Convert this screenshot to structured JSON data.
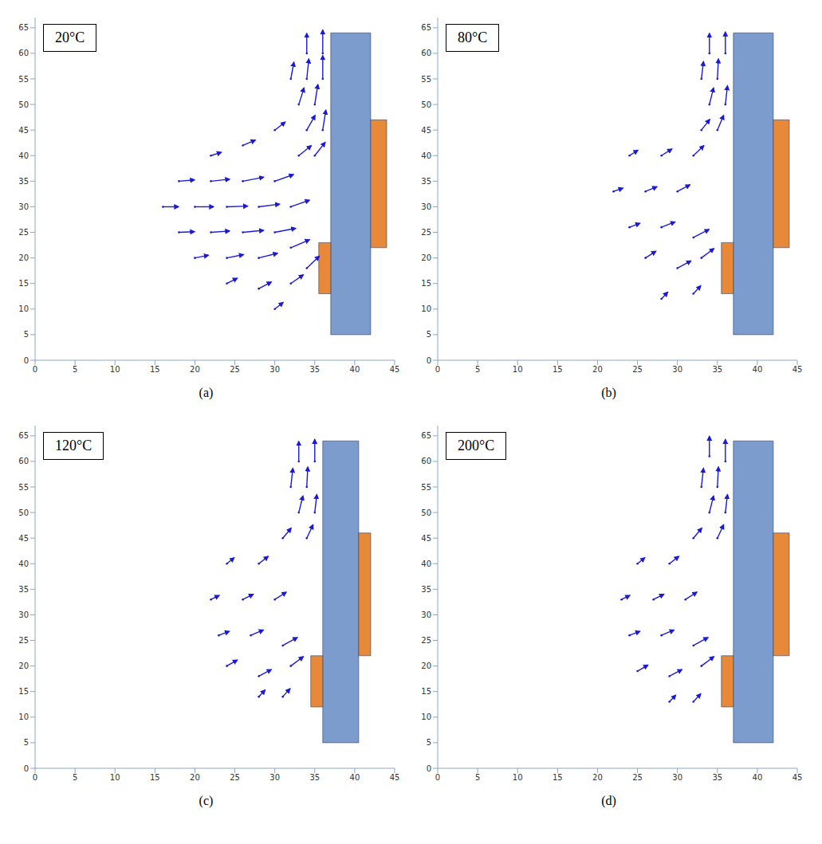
{
  "chart_data": [
    {
      "type": "quiver",
      "title": "20°C",
      "caption": "(a)",
      "xlim": [
        0,
        45
      ],
      "ylim": [
        0,
        67
      ],
      "xticks": [
        0,
        5,
        10,
        15,
        20,
        25,
        30,
        35,
        40,
        45
      ],
      "yticks": [
        0,
        5,
        10,
        15,
        20,
        25,
        30,
        35,
        40,
        45,
        50,
        55,
        60,
        65
      ],
      "grid": false,
      "color": "#1a1ad6",
      "regions": [
        {
          "xlim": [
            37,
            42
          ],
          "ylim": [
            5,
            64
          ],
          "color": "#7b9ccc"
        },
        {
          "xlim": [
            42,
            44
          ],
          "ylim": [
            22,
            47
          ],
          "color": "#e8893a"
        },
        {
          "xlim": [
            35.5,
            37
          ],
          "ylim": [
            13,
            23
          ],
          "color": "#e8893a"
        }
      ],
      "vectors": [
        [
          34,
          60,
          0,
          3
        ],
        [
          36,
          60,
          0,
          3.5
        ],
        [
          32,
          55,
          0.3,
          2.5
        ],
        [
          34,
          55,
          0.2,
          3
        ],
        [
          36,
          55,
          0,
          3.5
        ],
        [
          33,
          50,
          0.5,
          2.5
        ],
        [
          35,
          50,
          0.3,
          3
        ],
        [
          34,
          45,
          0.8,
          2.2
        ],
        [
          36,
          45,
          0.3,
          3
        ],
        [
          35,
          40,
          1,
          2
        ],
        [
          33,
          40,
          1.2,
          1.5
        ],
        [
          16,
          30,
          1.5,
          0
        ],
        [
          20,
          30,
          1.8,
          0
        ],
        [
          24,
          30,
          2,
          0.1
        ],
        [
          28,
          30,
          2,
          0.4
        ],
        [
          32,
          30,
          1.8,
          1
        ],
        [
          18,
          35,
          1.5,
          0.2
        ],
        [
          22,
          35,
          1.8,
          0.3
        ],
        [
          26,
          35,
          2,
          0.6
        ],
        [
          30,
          35,
          1.8,
          1
        ],
        [
          18,
          25,
          1.5,
          0.1
        ],
        [
          22,
          25,
          1.8,
          0.2
        ],
        [
          26,
          25,
          2,
          0.3
        ],
        [
          30,
          25,
          2,
          0.6
        ],
        [
          20,
          20,
          1.3,
          0.4
        ],
        [
          24,
          20,
          1.6,
          0.5
        ],
        [
          28,
          20,
          1.8,
          0.7
        ],
        [
          32,
          22,
          1.8,
          1.2
        ],
        [
          24,
          15,
          1,
          0.8
        ],
        [
          28,
          14,
          1.2,
          1
        ],
        [
          32,
          15,
          1.2,
          1.3
        ],
        [
          30,
          10,
          0.8,
          1
        ],
        [
          34,
          18,
          1.2,
          1.8
        ],
        [
          22,
          40,
          1,
          0.5
        ],
        [
          26,
          42,
          1.2,
          0.8
        ],
        [
          30,
          45,
          1,
          1.2
        ]
      ]
    },
    {
      "type": "quiver",
      "title": "80°C",
      "caption": "(b)",
      "xlim": [
        0,
        45
      ],
      "ylim": [
        0,
        67
      ],
      "xticks": [
        0,
        5,
        10,
        15,
        20,
        25,
        30,
        35,
        40,
        45
      ],
      "yticks": [
        0,
        5,
        10,
        15,
        20,
        25,
        30,
        35,
        40,
        45,
        50,
        55,
        60,
        65
      ],
      "grid": false,
      "color": "#1a1ad6",
      "regions": [
        {
          "xlim": [
            37,
            42
          ],
          "ylim": [
            5,
            64
          ],
          "color": "#7b9ccc"
        },
        {
          "xlim": [
            42,
            44
          ],
          "ylim": [
            22,
            47
          ],
          "color": "#e8893a"
        },
        {
          "xlim": [
            35.5,
            37
          ],
          "ylim": [
            13,
            23
          ],
          "color": "#e8893a"
        }
      ],
      "vectors": [
        [
          34,
          60,
          0,
          3
        ],
        [
          36,
          60,
          0,
          3.2
        ],
        [
          33,
          55,
          0.2,
          2.6
        ],
        [
          35,
          55,
          0.1,
          3
        ],
        [
          34,
          50,
          0.4,
          2.5
        ],
        [
          36,
          50,
          0.2,
          2.8
        ],
        [
          35,
          45,
          0.6,
          2.2
        ],
        [
          33,
          45,
          0.8,
          1.6
        ],
        [
          24,
          40,
          0.8,
          0.8
        ],
        [
          28,
          40,
          1,
          1
        ],
        [
          32,
          40,
          1,
          1.5
        ],
        [
          22,
          33,
          0.9,
          0.5
        ],
        [
          26,
          33,
          1.1,
          0.7
        ],
        [
          30,
          33,
          1.2,
          1
        ],
        [
          24,
          26,
          1,
          0.6
        ],
        [
          28,
          26,
          1.3,
          0.8
        ],
        [
          32,
          24,
          1.5,
          1.2
        ],
        [
          26,
          20,
          1,
          1
        ],
        [
          30,
          18,
          1.3,
          1.1
        ],
        [
          33,
          20,
          1.2,
          1.4
        ],
        [
          28,
          12,
          0.6,
          1
        ],
        [
          32,
          13,
          0.7,
          1.2
        ]
      ]
    },
    {
      "type": "quiver",
      "title": "120°C",
      "caption": "(c)",
      "xlim": [
        0,
        45
      ],
      "ylim": [
        0,
        67
      ],
      "xticks": [
        0,
        5,
        10,
        15,
        20,
        25,
        30,
        35,
        40,
        45
      ],
      "yticks": [
        0,
        5,
        10,
        15,
        20,
        25,
        30,
        35,
        40,
        45,
        50,
        55,
        60,
        65
      ],
      "grid": false,
      "color": "#1a1ad6",
      "regions": [
        {
          "xlim": [
            36,
            40.5
          ],
          "ylim": [
            5,
            64
          ],
          "color": "#7b9ccc"
        },
        {
          "xlim": [
            40.5,
            42
          ],
          "ylim": [
            22,
            46
          ],
          "color": "#e8893a"
        },
        {
          "xlim": [
            34.5,
            36
          ],
          "ylim": [
            12,
            22
          ],
          "color": "#e8893a"
        }
      ],
      "vectors": [
        [
          33,
          60,
          0,
          3
        ],
        [
          35,
          60,
          0,
          3.3
        ],
        [
          32,
          55,
          0.2,
          2.8
        ],
        [
          34,
          55,
          0.1,
          3
        ],
        [
          33,
          50,
          0.4,
          2.5
        ],
        [
          35,
          50,
          0.2,
          2.7
        ],
        [
          34,
          45,
          0.6,
          2
        ],
        [
          31,
          45,
          0.8,
          1.5
        ],
        [
          24,
          40,
          0.7,
          0.9
        ],
        [
          28,
          40,
          0.9,
          1.1
        ],
        [
          22,
          33,
          0.8,
          0.6
        ],
        [
          26,
          33,
          1,
          0.8
        ],
        [
          30,
          33,
          1.1,
          1.1
        ],
        [
          23,
          26,
          1,
          0.6
        ],
        [
          27,
          26,
          1.2,
          0.8
        ],
        [
          31,
          24,
          1.4,
          1.2
        ],
        [
          24,
          20,
          1,
          0.9
        ],
        [
          28,
          18,
          1.2,
          1
        ],
        [
          32,
          20,
          1.2,
          1.4
        ],
        [
          28,
          14,
          0.6,
          1
        ],
        [
          31,
          14,
          0.7,
          1.2
        ]
      ]
    },
    {
      "type": "quiver",
      "title": "200°C",
      "caption": "(d)",
      "xlim": [
        0,
        45
      ],
      "ylim": [
        0,
        67
      ],
      "xticks": [
        0,
        5,
        10,
        15,
        20,
        25,
        30,
        35,
        40,
        45
      ],
      "yticks": [
        0,
        5,
        10,
        15,
        20,
        25,
        30,
        35,
        40,
        45,
        50,
        55,
        60,
        65
      ],
      "grid": false,
      "color": "#1a1ad6",
      "regions": [
        {
          "xlim": [
            37,
            42
          ],
          "ylim": [
            5,
            64
          ],
          "color": "#7b9ccc"
        },
        {
          "xlim": [
            42,
            44
          ],
          "ylim": [
            22,
            46
          ],
          "color": "#e8893a"
        },
        {
          "xlim": [
            35.5,
            37
          ],
          "ylim": [
            12,
            22
          ],
          "color": "#e8893a"
        }
      ],
      "vectors": [
        [
          34,
          61,
          0,
          3
        ],
        [
          36,
          60,
          0,
          3.3
        ],
        [
          33,
          55,
          0.2,
          2.8
        ],
        [
          35,
          55,
          0.1,
          3
        ],
        [
          34,
          50,
          0.4,
          2.5
        ],
        [
          36,
          50,
          0.2,
          2.7
        ],
        [
          35,
          45,
          0.6,
          2
        ],
        [
          32,
          45,
          0.8,
          1.5
        ],
        [
          25,
          40,
          0.7,
          0.9
        ],
        [
          29,
          40,
          0.9,
          1.1
        ],
        [
          23,
          33,
          0.8,
          0.6
        ],
        [
          27,
          33,
          1,
          0.8
        ],
        [
          31,
          33,
          1.1,
          1.1
        ],
        [
          24,
          26,
          1,
          0.6
        ],
        [
          28,
          26,
          1.2,
          0.8
        ],
        [
          32,
          24,
          1.4,
          1.2
        ],
        [
          25,
          19,
          1,
          0.9
        ],
        [
          29,
          18,
          1.2,
          1
        ],
        [
          33,
          20,
          1.2,
          1.4
        ],
        [
          29,
          13,
          0.6,
          1
        ],
        [
          32,
          13,
          0.7,
          1.2
        ]
      ]
    }
  ]
}
